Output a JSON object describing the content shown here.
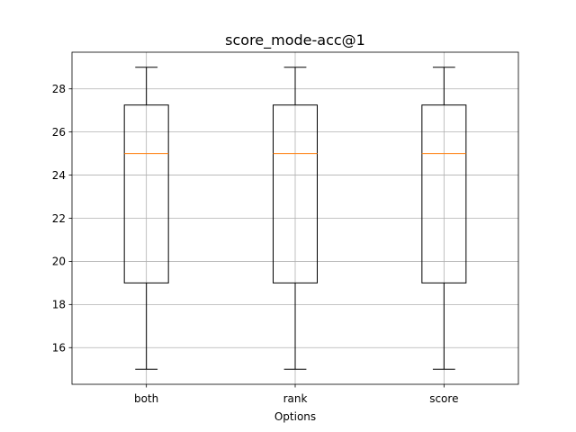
{
  "chart_data": {
    "type": "box",
    "title": "score_mode-acc@1",
    "xlabel": "Options",
    "ylabel": "",
    "categories": [
      "both",
      "rank",
      "score"
    ],
    "boxes": [
      {
        "category": "both",
        "whisker_low": 15,
        "q1": 19,
        "median": 25,
        "q3": 27.25,
        "whisker_high": 29
      },
      {
        "category": "rank",
        "whisker_low": 15,
        "q1": 19,
        "median": 25,
        "q3": 27.25,
        "whisker_high": 29
      },
      {
        "category": "score",
        "whisker_low": 15,
        "q1": 19,
        "median": 25,
        "q3": 27.25,
        "whisker_high": 29
      }
    ],
    "ylim": [
      14.3,
      29.7
    ],
    "yticks": [
      16,
      18,
      20,
      22,
      24,
      26,
      28
    ],
    "grid": true,
    "colors": {
      "box": "#000000",
      "median": "#ff7f0e",
      "grid": "#b0b0b0"
    }
  }
}
